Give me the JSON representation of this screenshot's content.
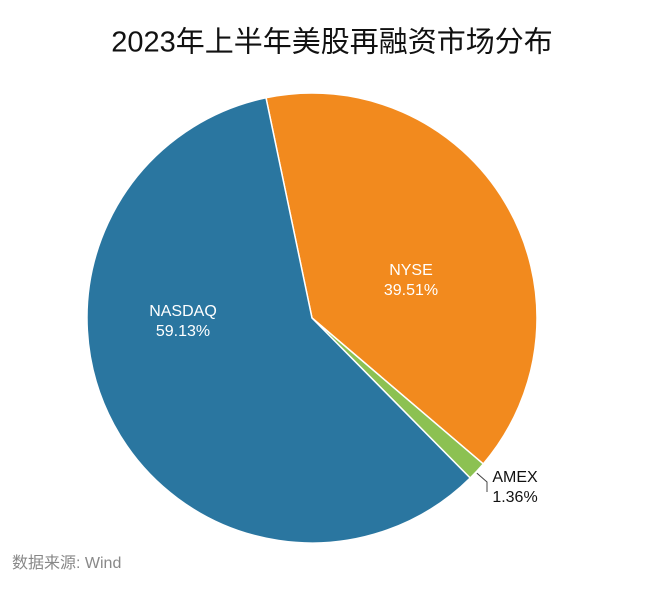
{
  "chart_data": {
    "type": "pie",
    "title": "2023年上半年美股再融资市场分布",
    "categories": [
      "NYSE",
      "AMEX",
      "NASDAQ"
    ],
    "values": [
      39.51,
      1.36,
      59.13
    ],
    "value_labels": [
      "39.51%",
      "1.36%",
      "59.13%"
    ],
    "colors": [
      "#f28a1e",
      "#8cc152",
      "#2a76a0"
    ],
    "source": "数据来源: Wind"
  }
}
